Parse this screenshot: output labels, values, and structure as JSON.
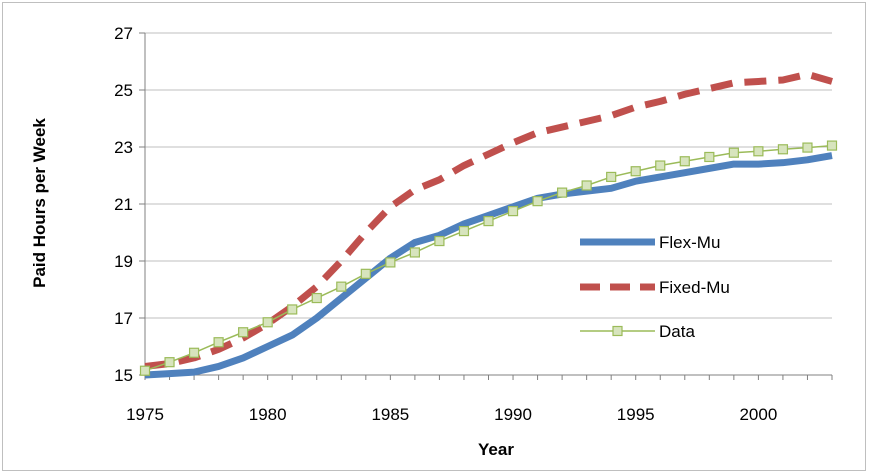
{
  "chart_data": {
    "type": "line",
    "title": "",
    "xlabel": "Year",
    "ylabel": "Paid Hours per Week",
    "xlim": [
      1975,
      2003
    ],
    "ylim": [
      15,
      27
    ],
    "x_ticks": [
      "1975",
      "1980",
      "1985",
      "1990",
      "1995",
      "2000"
    ],
    "y_ticks": [
      "15",
      "17",
      "19",
      "21",
      "23",
      "25",
      "27"
    ],
    "grid": "horizontal",
    "legend_position": "right",
    "series": [
      {
        "name": "Flex-Mu",
        "color": "#4f81bd",
        "style": "solid-thick",
        "x": [
          1975,
          1976,
          1977,
          1978,
          1979,
          1980,
          1981,
          1982,
          1983,
          1984,
          1985,
          1986,
          1987,
          1988,
          1989,
          1990,
          1991,
          1992,
          1993,
          1994,
          1995,
          1996,
          1997,
          1998,
          1999,
          2000,
          2001,
          2002,
          2003
        ],
        "y": [
          15.0,
          15.05,
          15.1,
          15.3,
          15.6,
          16.0,
          16.4,
          17.0,
          17.7,
          18.4,
          19.1,
          19.65,
          19.9,
          20.3,
          20.6,
          20.9,
          21.2,
          21.35,
          21.45,
          21.55,
          21.8,
          21.95,
          22.1,
          22.25,
          22.4,
          22.4,
          22.45,
          22.55,
          22.7
        ]
      },
      {
        "name": "Fixed-Mu",
        "color": "#c0504d",
        "style": "dashed-thick",
        "x": [
          1975,
          1976,
          1977,
          1978,
          1979,
          1980,
          1981,
          1982,
          1983,
          1984,
          1985,
          1986,
          1987,
          1988,
          1989,
          1990,
          1991,
          1992,
          1993,
          1994,
          1995,
          1996,
          1997,
          1998,
          1999,
          2000,
          2001,
          2002,
          2003
        ],
        "y": [
          15.3,
          15.4,
          15.6,
          15.9,
          16.3,
          16.8,
          17.4,
          18.1,
          19.0,
          20.0,
          20.9,
          21.5,
          21.85,
          22.35,
          22.75,
          23.15,
          23.5,
          23.7,
          23.9,
          24.1,
          24.4,
          24.6,
          24.85,
          25.05,
          25.25,
          25.3,
          25.35,
          25.55,
          25.3
        ]
      },
      {
        "name": "Data",
        "color": "#9bbb59",
        "marker_fill": "#d7e4bd",
        "style": "thin-square-markers",
        "x": [
          1975,
          1976,
          1977,
          1978,
          1979,
          1980,
          1981,
          1982,
          1983,
          1984,
          1985,
          1986,
          1987,
          1988,
          1989,
          1990,
          1991,
          1992,
          1993,
          1994,
          1995,
          1996,
          1997,
          1998,
          1999,
          2000,
          2001,
          2002,
          2003
        ],
        "y": [
          15.15,
          15.45,
          15.78,
          16.15,
          16.5,
          16.85,
          17.3,
          17.7,
          18.1,
          18.55,
          18.95,
          19.3,
          19.7,
          20.05,
          20.4,
          20.75,
          21.1,
          21.4,
          21.65,
          21.95,
          22.15,
          22.35,
          22.5,
          22.65,
          22.8,
          22.85,
          22.92,
          22.98,
          23.05
        ]
      }
    ]
  }
}
